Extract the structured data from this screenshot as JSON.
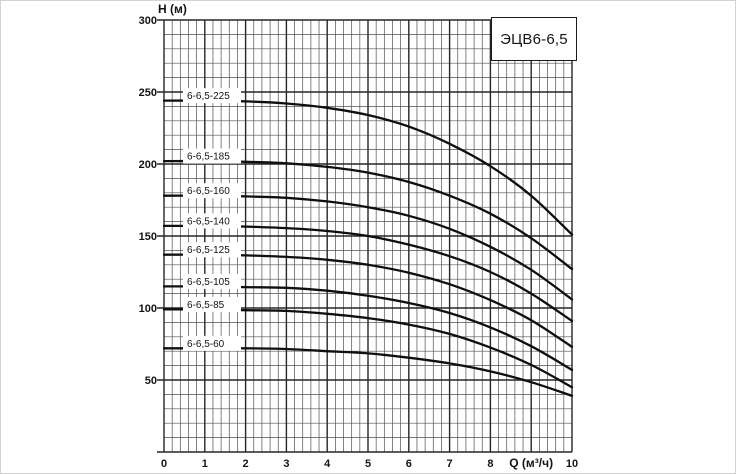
{
  "figure": {
    "title": "ЭЦВ6-6,5",
    "y_axis_title": "H (м)",
    "x_axis_title": "Q (м³/ч)"
  },
  "chart_data": {
    "type": "line",
    "title": "ЭЦВ6-6,5",
    "xlabel": "Q (м³/ч)",
    "ylabel": "H (м)",
    "xlim": [
      0,
      10
    ],
    "ylim": [
      0,
      300
    ],
    "x_tick_values": [
      0,
      1,
      2,
      3,
      4,
      5,
      6,
      7,
      8,
      10
    ],
    "x_label_position": 9,
    "y_tick_values": [
      50,
      100,
      150,
      200,
      250,
      300
    ],
    "x_minor_step": 0.2,
    "y_minor_step": 10,
    "grid": "major+minor",
    "legend": "labels-on-curves",
    "x": [
      0,
      1,
      2,
      3,
      4,
      5,
      6,
      7,
      8,
      9,
      10
    ],
    "series": [
      {
        "name": "6-6,5-225",
        "values": [
          244,
          244,
          243.5,
          242,
          239,
          234,
          226,
          214,
          198.5,
          178,
          151
        ]
      },
      {
        "name": "6-6,5-185",
        "values": [
          202,
          202,
          201.5,
          200.5,
          198,
          194,
          187.5,
          178,
          165.5,
          148.5,
          127
        ]
      },
      {
        "name": "6-6,5-160",
        "values": [
          178,
          178,
          177.5,
          176.5,
          174,
          170,
          164,
          155,
          142.5,
          126.5,
          106
        ]
      },
      {
        "name": "6-6,5-140",
        "values": [
          157,
          157,
          156.5,
          155.5,
          153.5,
          150,
          144,
          136,
          125,
          110,
          91
        ]
      },
      {
        "name": "6-6,5-125",
        "values": [
          137,
          137,
          136.5,
          135.5,
          133.5,
          130,
          124.5,
          116.5,
          105.5,
          91.5,
          73
        ]
      },
      {
        "name": "6-6,5-105",
        "values": [
          115,
          115,
          114.5,
          114,
          112,
          108.5,
          103.5,
          96.5,
          86.5,
          73.5,
          57
        ]
      },
      {
        "name": "6-6,5-85",
        "values": [
          99,
          99,
          98.5,
          98,
          96,
          93,
          88.5,
          82,
          72.5,
          60.5,
          45
        ]
      },
      {
        "name": "6-6,5-60",
        "values": [
          72,
          72,
          72,
          71.5,
          70,
          68.5,
          65.5,
          61.5,
          56,
          48.5,
          39
        ]
      }
    ]
  },
  "colors": {
    "background": "#ffffff",
    "ink": "#141414",
    "major_grid": "#262626",
    "minor_grid": "#505050",
    "curve": "#0f0f0f",
    "frame": "#d2d2d2"
  }
}
